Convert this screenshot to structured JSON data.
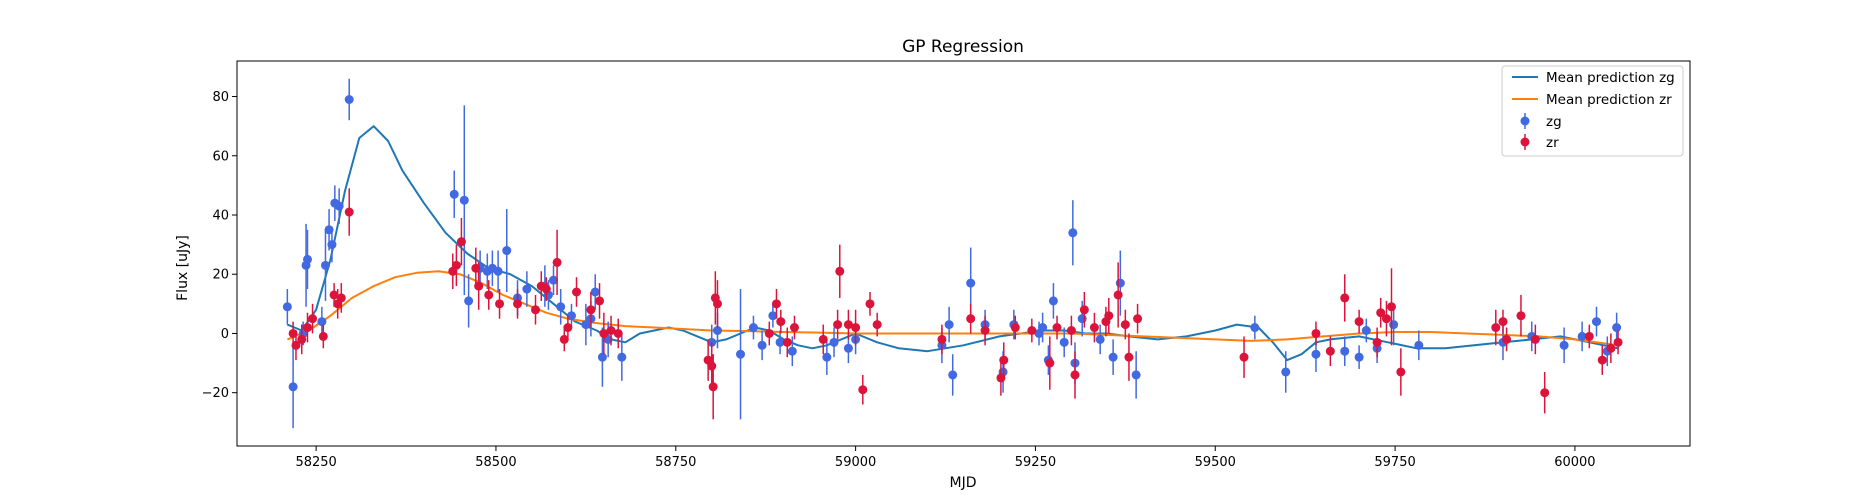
{
  "chart_data": {
    "type": "scatter",
    "title": "GP Regression",
    "xlabel": "MJD",
    "ylabel": "Flux [uJy]",
    "xlim": [
      58140,
      60160
    ],
    "ylim": [
      -38,
      92
    ],
    "xticks": [
      58250,
      58500,
      58750,
      59000,
      59250,
      59500,
      59750,
      60000
    ],
    "yticks": [
      -20,
      0,
      20,
      40,
      60,
      80
    ],
    "xtick_labels": [
      "58250",
      "58500",
      "58750",
      "59000",
      "59250",
      "59500",
      "59750",
      "60000"
    ],
    "ytick_labels": [
      "−20",
      "0",
      "20",
      "40",
      "60",
      "80"
    ],
    "grid": false,
    "legend_position": "upper right",
    "colors": {
      "mean_zg": "#1f77b4",
      "mean_zr": "#ff7f0e",
      "zg": "#4169e1",
      "zr": "#dc143c"
    },
    "lines": [
      {
        "name": "Mean prediction zg",
        "x": [
          58210,
          58230,
          58250,
          58270,
          58290,
          58310,
          58330,
          58350,
          58370,
          58400,
          58430,
          58460,
          58490,
          58520,
          58550,
          58580,
          58610,
          58640,
          58660,
          58680,
          58700,
          58720,
          58740,
          58760,
          58780,
          58800,
          58820,
          58840,
          58860,
          58880,
          58900,
          58920,
          58940,
          58960,
          58980,
          59000,
          59030,
          59060,
          59100,
          59150,
          59200,
          59230,
          59260,
          59290,
          59320,
          59350,
          59380,
          59420,
          59460,
          59500,
          59530,
          59560,
          59580,
          59600,
          59620,
          59640,
          59660,
          59700,
          59740,
          59780,
          59820,
          59860,
          59900,
          59940,
          59980,
          60020,
          60060
        ],
        "y": [
          3,
          1,
          8,
          25,
          48,
          66,
          70,
          65,
          55,
          44,
          34,
          27,
          22,
          20,
          16,
          10,
          4,
          1,
          -2,
          -3,
          0,
          1,
          2,
          1,
          -1,
          -3,
          -2,
          0,
          2,
          1,
          -2,
          -4,
          -5,
          -4,
          -2,
          0,
          -3,
          -5,
          -6,
          -4,
          -1,
          0,
          1,
          1,
          0,
          0,
          -1,
          -2,
          -1,
          1,
          3,
          2,
          -3,
          -9,
          -7,
          -3,
          -2,
          -1,
          -3,
          -5,
          -5,
          -4,
          -3,
          -2,
          -1,
          -3,
          -5
        ]
      },
      {
        "name": "Mean prediction zr",
        "x": [
          58210,
          58240,
          58270,
          58300,
          58330,
          58360,
          58390,
          58420,
          58450,
          58480,
          58510,
          58540,
          58570,
          58600,
          58640,
          58680,
          58720,
          58760,
          58800,
          58850,
          58900,
          58950,
          59000,
          59100,
          59200,
          59300,
          59400,
          59500,
          59550,
          59600,
          59650,
          59700,
          59750,
          59800,
          59850,
          59900,
          59950,
          60000,
          60060
        ],
        "y": [
          -2,
          1,
          6,
          12,
          16,
          19,
          20.5,
          21,
          20,
          17,
          13,
          10,
          7,
          5,
          3.5,
          2.5,
          2,
          1.5,
          1,
          0.8,
          0.5,
          0.3,
          0,
          0,
          0,
          0,
          -1,
          -2,
          -2.5,
          -2,
          -1,
          0,
          0.5,
          0.5,
          0,
          -0.5,
          -1,
          -2,
          -4
        ]
      }
    ],
    "series": [
      {
        "name": "zg",
        "points": [
          [
            58210,
            9,
            6
          ],
          [
            58218,
            -18,
            14
          ],
          [
            58232,
            0,
            4
          ],
          [
            58236,
            23,
            14
          ],
          [
            58238,
            25,
            10
          ],
          [
            58258,
            4,
            5
          ],
          [
            58263,
            23,
            12
          ],
          [
            58268,
            35,
            7
          ],
          [
            58272,
            30,
            6
          ],
          [
            58276,
            44,
            6
          ],
          [
            58282,
            43,
            6
          ],
          [
            58296,
            79,
            7
          ],
          [
            58442,
            47,
            8
          ],
          [
            58456,
            45,
            32
          ],
          [
            58462,
            11,
            9
          ],
          [
            58478,
            22,
            6
          ],
          [
            58488,
            21,
            6
          ],
          [
            58495,
            22,
            6
          ],
          [
            58503,
            21,
            7
          ],
          [
            58515,
            28,
            14
          ],
          [
            58530,
            12,
            6
          ],
          [
            58543,
            15,
            6
          ],
          [
            58568,
            16,
            7
          ],
          [
            58573,
            13,
            5
          ],
          [
            58580,
            18,
            5
          ],
          [
            58590,
            9,
            6
          ],
          [
            58605,
            6,
            4
          ],
          [
            58625,
            3,
            7
          ],
          [
            58632,
            5,
            6
          ],
          [
            58638,
            14,
            6
          ],
          [
            58648,
            -8,
            10
          ],
          [
            58656,
            -2,
            6
          ],
          [
            58675,
            -8,
            8
          ],
          [
            58800,
            -3,
            6
          ],
          [
            58808,
            1,
            6
          ],
          [
            58840,
            -7,
            22
          ],
          [
            58858,
            2,
            4
          ],
          [
            58870,
            -4,
            5
          ],
          [
            58885,
            6,
            4
          ],
          [
            58895,
            -3,
            4
          ],
          [
            58912,
            -6,
            5
          ],
          [
            58960,
            -8,
            6
          ],
          [
            58970,
            -3,
            5
          ],
          [
            58990,
            -5,
            5
          ],
          [
            59000,
            -2,
            5
          ],
          [
            59120,
            -4,
            6
          ],
          [
            59130,
            3,
            6
          ],
          [
            59135,
            -14,
            7
          ],
          [
            59160,
            17,
            12
          ],
          [
            59180,
            3,
            5
          ],
          [
            59205,
            -13,
            7
          ],
          [
            59220,
            3,
            5
          ],
          [
            59255,
            0,
            4
          ],
          [
            59260,
            2,
            5
          ],
          [
            59268,
            -9,
            5
          ],
          [
            59275,
            11,
            6
          ],
          [
            59290,
            -3,
            5
          ],
          [
            59302,
            34,
            11
          ],
          [
            59305,
            -10,
            7
          ],
          [
            59315,
            5,
            6
          ],
          [
            59340,
            -2,
            5
          ],
          [
            59358,
            -8,
            6
          ],
          [
            59368,
            17,
            11
          ],
          [
            59390,
            -14,
            8
          ],
          [
            59555,
            2,
            4
          ],
          [
            59598,
            -13,
            7
          ],
          [
            59640,
            -7,
            6
          ],
          [
            59680,
            -6,
            5
          ],
          [
            59700,
            -8,
            4
          ],
          [
            59710,
            1,
            4
          ],
          [
            59725,
            -5,
            5
          ],
          [
            59748,
            3,
            7
          ],
          [
            59783,
            -4,
            5
          ],
          [
            59900,
            -3,
            6
          ],
          [
            59940,
            -1,
            5
          ],
          [
            59985,
            -4,
            6
          ],
          [
            60010,
            -1,
            5
          ],
          [
            60030,
            4,
            5
          ],
          [
            60045,
            -6,
            5
          ],
          [
            60058,
            2,
            5
          ]
        ]
      },
      {
        "name": "zr",
        "points": [
          [
            58218,
            0,
            4
          ],
          [
            58222,
            -4,
            5
          ],
          [
            58230,
            -2,
            5
          ],
          [
            58238,
            2,
            5
          ],
          [
            58245,
            5,
            5
          ],
          [
            58260,
            -1,
            4
          ],
          [
            58275,
            13,
            4
          ],
          [
            58280,
            10,
            5
          ],
          [
            58285,
            12,
            5
          ],
          [
            58296,
            41,
            8
          ],
          [
            58440,
            21,
            6
          ],
          [
            58445,
            23,
            7
          ],
          [
            58452,
            31,
            8
          ],
          [
            58472,
            22,
            7
          ],
          [
            58476,
            16,
            8
          ],
          [
            58490,
            13,
            5
          ],
          [
            58505,
            10,
            5
          ],
          [
            58530,
            10,
            5
          ],
          [
            58555,
            8,
            5
          ],
          [
            58563,
            16,
            5
          ],
          [
            58570,
            15,
            4
          ],
          [
            58585,
            24,
            11
          ],
          [
            58595,
            -2,
            4
          ],
          [
            58600,
            2,
            4
          ],
          [
            58612,
            14,
            5
          ],
          [
            58632,
            8,
            6
          ],
          [
            58644,
            11,
            6
          ],
          [
            58650,
            0,
            7
          ],
          [
            58660,
            1,
            5
          ],
          [
            58670,
            0,
            5
          ],
          [
            58795,
            -9,
            7
          ],
          [
            58800,
            -11,
            8
          ],
          [
            58802,
            -18,
            11
          ],
          [
            58805,
            12,
            9
          ],
          [
            58808,
            10,
            8
          ],
          [
            58880,
            0,
            4
          ],
          [
            58890,
            10,
            5
          ],
          [
            58896,
            4,
            4
          ],
          [
            58905,
            -3,
            5
          ],
          [
            58915,
            2,
            4
          ],
          [
            58955,
            -2,
            5
          ],
          [
            58975,
            3,
            5
          ],
          [
            58978,
            21,
            9
          ],
          [
            58990,
            3,
            5
          ],
          [
            59000,
            2,
            6
          ],
          [
            59010,
            -19,
            5
          ],
          [
            59020,
            10,
            4
          ],
          [
            59030,
            3,
            4
          ],
          [
            59120,
            -2,
            5
          ],
          [
            59160,
            5,
            5
          ],
          [
            59180,
            1,
            5
          ],
          [
            59202,
            -15,
            6
          ],
          [
            59206,
            -9,
            6
          ],
          [
            59222,
            2,
            4
          ],
          [
            59245,
            1,
            4
          ],
          [
            59270,
            -10,
            9
          ],
          [
            59280,
            2,
            4
          ],
          [
            59300,
            1,
            5
          ],
          [
            59305,
            -14,
            8
          ],
          [
            59318,
            8,
            6
          ],
          [
            59332,
            2,
            5
          ],
          [
            59348,
            4,
            5
          ],
          [
            59352,
            6,
            6
          ],
          [
            59365,
            13,
            11
          ],
          [
            59375,
            3,
            5
          ],
          [
            59380,
            -8,
            8
          ],
          [
            59392,
            5,
            5
          ],
          [
            59540,
            -8,
            7
          ],
          [
            59640,
            0,
            4
          ],
          [
            59660,
            -6,
            5
          ],
          [
            59680,
            12,
            8
          ],
          [
            59700,
            4,
            4
          ],
          [
            59725,
            -3,
            5
          ],
          [
            59730,
            7,
            5
          ],
          [
            59738,
            5,
            6
          ],
          [
            59745,
            9,
            13
          ],
          [
            59758,
            -13,
            8
          ],
          [
            59890,
            2,
            6
          ],
          [
            59900,
            4,
            4
          ],
          [
            59905,
            -2,
            4
          ],
          [
            59925,
            6,
            7
          ],
          [
            59945,
            -2,
            5
          ],
          [
            59958,
            -20,
            7
          ],
          [
            60020,
            -1,
            4
          ],
          [
            60038,
            -9,
            5
          ],
          [
            60050,
            -5,
            5
          ],
          [
            60060,
            -3,
            4
          ]
        ]
      }
    ]
  }
}
